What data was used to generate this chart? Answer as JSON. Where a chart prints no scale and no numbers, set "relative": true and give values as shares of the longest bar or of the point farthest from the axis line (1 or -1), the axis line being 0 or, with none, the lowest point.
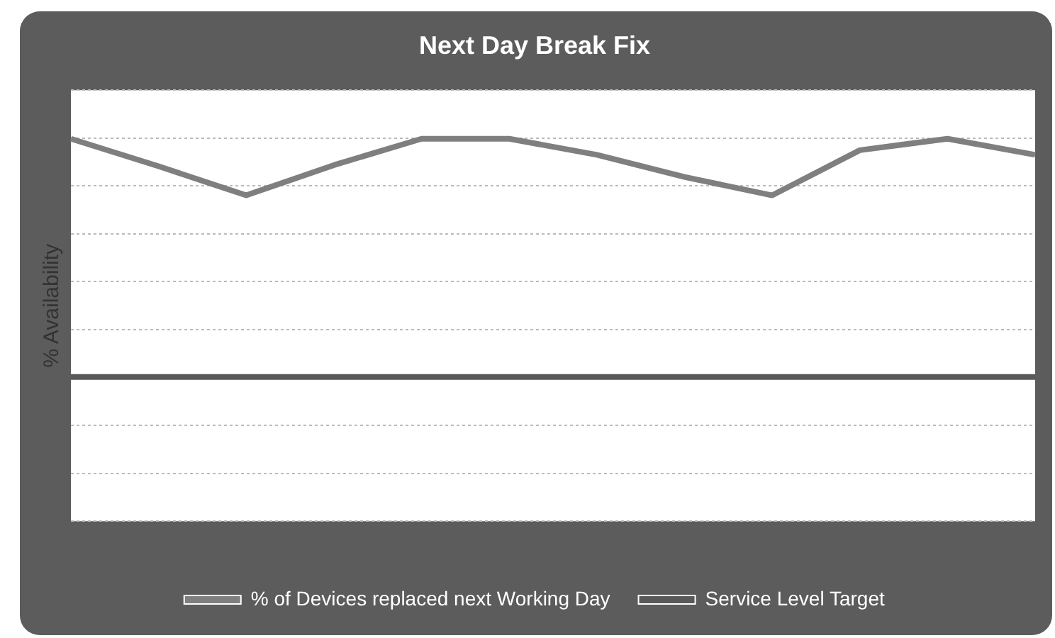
{
  "chart_data": {
    "type": "line",
    "title": "Next Day Break Fix",
    "ylabel": "% Availability",
    "relative": true,
    "grid": "y",
    "legend": "bottom",
    "marker": "none",
    "categories": [
      null,
      null,
      null,
      null,
      null,
      null,
      null,
      null,
      null,
      null,
      null,
      null
    ],
    "series": [
      {
        "name": "% of Devices replaced next Working Day",
        "color": "#7f7f7f",
        "values": [
          1,
          0.928,
          0.852,
          0.931,
          1,
          1,
          0.958,
          0.9,
          0.852,
          0.97,
          1,
          0.958
        ]
      },
      {
        "name": "Service Level Target",
        "color": "#595959",
        "values": [
          0.377,
          0.377,
          0.377,
          0.377,
          0.377,
          0.377,
          0.377,
          0.377,
          0.377,
          0.377,
          0.377,
          0.377
        ]
      }
    ]
  }
}
